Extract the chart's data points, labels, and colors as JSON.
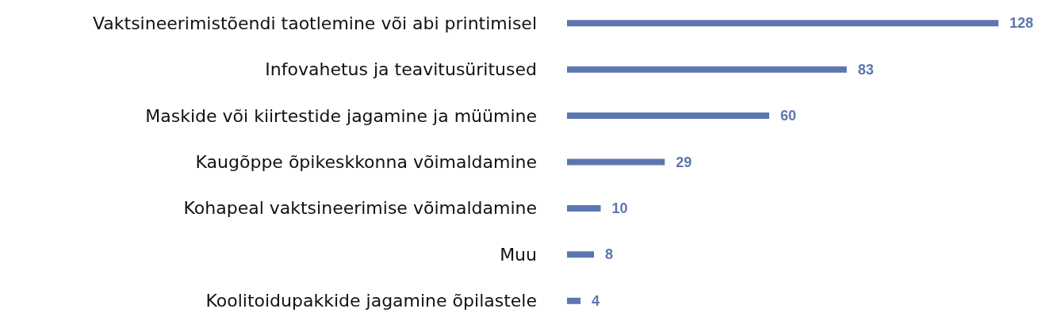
{
  "chart_data": {
    "type": "bar",
    "orientation": "horizontal",
    "categories": [
      "Vaktsineerimistõendi taotlemine või abi printimisel",
      "Infovahetus ja teavitusüritused",
      "Maskide või kiirtestide jagamine ja müümine",
      "Kaugõppe õpikeskkonna võimaldamine",
      "Kohapeal vaktsineerimise võimaldamine",
      "Muu",
      "Koolitoidupakkide jagamine õpilastele"
    ],
    "values": [
      128,
      83,
      60,
      29,
      10,
      8,
      4
    ],
    "color": "#5b76b0",
    "data_labels": true
  }
}
